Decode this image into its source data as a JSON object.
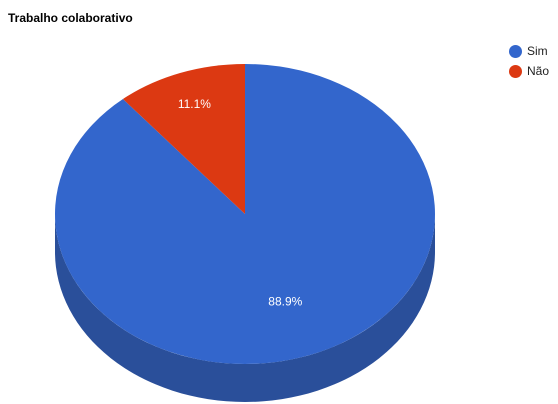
{
  "chart_data": {
    "type": "pie",
    "title": "Trabalho colaborativo",
    "three_d": true,
    "legend_position": "right",
    "slices": [
      {
        "label": "Sim",
        "value": 88.9,
        "value_label": "88.9%",
        "color": "#3366cc",
        "side_color": "#2a4f9a"
      },
      {
        "label": "Não",
        "value": 11.1,
        "value_label": "11.1%",
        "color": "#dc3912",
        "side_color": "#a52a0e"
      }
    ]
  }
}
